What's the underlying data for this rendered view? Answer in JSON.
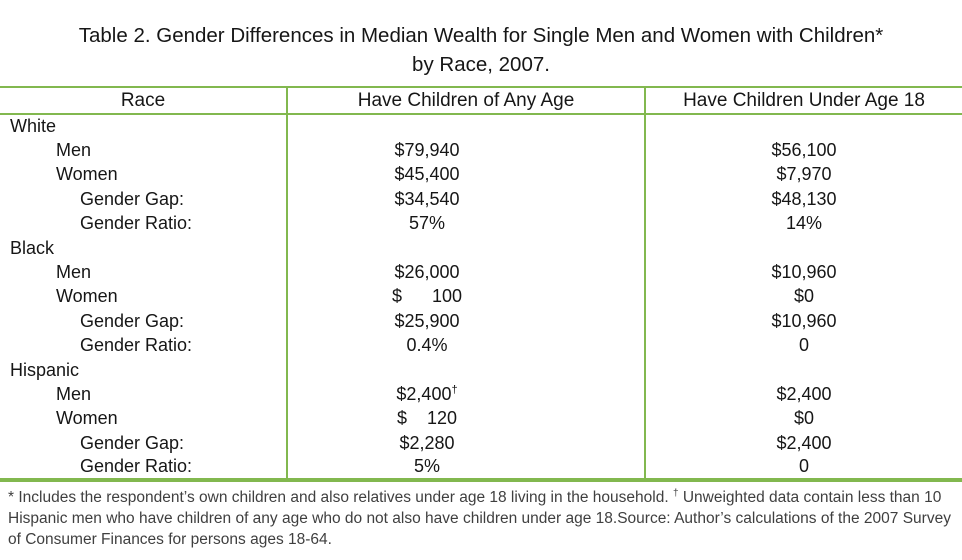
{
  "title": {
    "line1": "Table 2. Gender Differences in Median Wealth for Single Men and Women with Children*",
    "line2": "by Race, 2007."
  },
  "colors": {
    "line_green": "#82b84f"
  },
  "table": {
    "columns": [
      "Race",
      "Have Children of Any Age",
      "Have Children Under Age 18"
    ],
    "groups": [
      {
        "race": "White",
        "rows": [
          {
            "label": "Men",
            "any_age": "$79,940",
            "under_18": "$56,100"
          },
          {
            "label": "Women",
            "any_age": "$45,400",
            "under_18": "$7,970"
          },
          {
            "label": "Gender Gap:",
            "any_age": "$34,540",
            "under_18": "$48,130"
          },
          {
            "label": "Gender Ratio:",
            "any_age": "57%",
            "under_18": "14%"
          }
        ]
      },
      {
        "race": "Black",
        "rows": [
          {
            "label": "Men",
            "any_age": "$26,000",
            "under_18": "$10,960"
          },
          {
            "label": "Women",
            "any_age": "$      100",
            "under_18": "$0"
          },
          {
            "label": "Gender Gap:",
            "any_age": "$25,900",
            "under_18": "$10,960"
          },
          {
            "label": "Gender Ratio:",
            "any_age": "0.4%",
            "under_18": "0"
          }
        ]
      },
      {
        "race": "Hispanic",
        "rows": [
          {
            "label": "Men",
            "any_age": "$2,400",
            "any_age_sup": "†",
            "under_18": "$2,400"
          },
          {
            "label": "Women",
            "any_age": "$    120",
            "under_18": "$0"
          },
          {
            "label": "Gender Gap:",
            "any_age": "$2,280",
            "under_18": "$2,400"
          },
          {
            "label": "Gender Ratio:",
            "any_age": "5%",
            "under_18": "0"
          }
        ]
      }
    ]
  },
  "footnote": {
    "part1": "* Includes the respondent’s own children and also relatives under age 18 living in the household.",
    "dagger": "†",
    "part2": "Unweighted data contain less than 10 Hispanic men who have children of any age who do not also have children under age 18.Source: Author’s calculations of the 2007 Survey of Consumer Finances for persons ages 18-64."
  }
}
